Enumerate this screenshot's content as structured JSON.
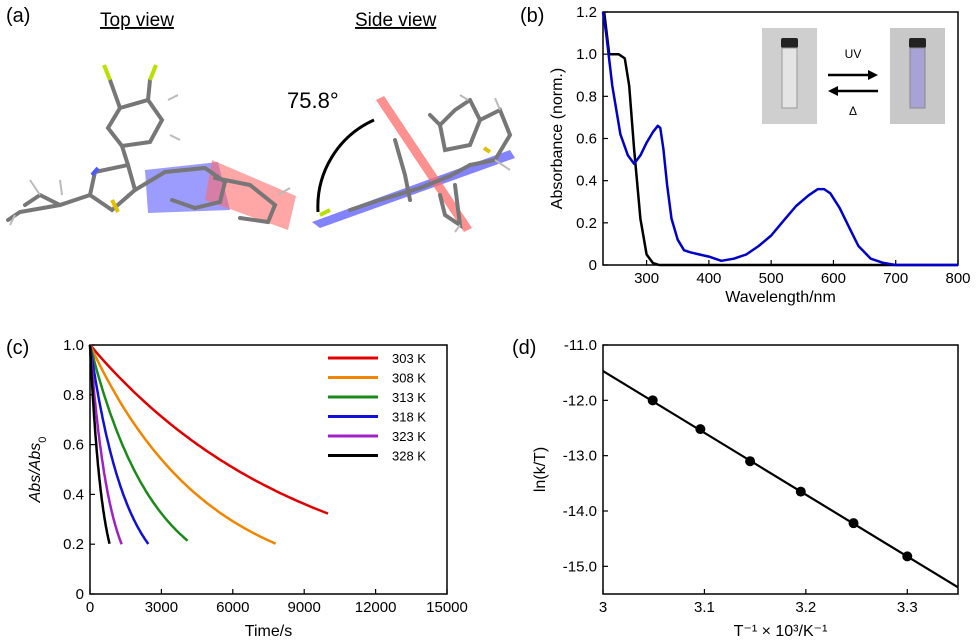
{
  "panel_a": {
    "label": "(a)",
    "top_view": "Top view",
    "side_view": "Side view",
    "angle": "75.8°"
  },
  "panel_b": {
    "label": "(b)",
    "uv_label": "UV",
    "heat_label": "Δ"
  },
  "panel_c": {
    "label": "(c)"
  },
  "panel_d": {
    "label": "(d)"
  },
  "colors": {
    "blue_plane": "#5a5aff",
    "red_plane": "#ff6b6b",
    "spectrum_blue": "#0000c8"
  },
  "chart_data": [
    {
      "id": "b",
      "type": "line",
      "xlabel": "Wavelength/nm",
      "ylabel": "Absorbance (norm.)",
      "xlim": [
        230,
        800
      ],
      "ylim": [
        0,
        1.2
      ],
      "xticks": [
        300,
        400,
        500,
        600,
        700,
        800
      ],
      "yticks": [
        0,
        0.2,
        0.4,
        0.6,
        0.8,
        1.0,
        1.2
      ],
      "series": [
        {
          "color": "#000000",
          "x": [
            232,
            240,
            255,
            265,
            272,
            280,
            290,
            300,
            310,
            320,
            800
          ],
          "y": [
            1.2,
            1.0,
            1.0,
            0.98,
            0.85,
            0.55,
            0.22,
            0.05,
            0.01,
            0,
            0
          ]
        },
        {
          "color": "#0000c8",
          "x": [
            230,
            235,
            245,
            258,
            270,
            280,
            290,
            300,
            310,
            318,
            322,
            327,
            333,
            340,
            350,
            360,
            370,
            385,
            400,
            420,
            440,
            460,
            480,
            500,
            520,
            540,
            560,
            575,
            585,
            595,
            610,
            625,
            640,
            660,
            680,
            700,
            720,
            750,
            800
          ],
          "y": [
            1.2,
            1.1,
            0.85,
            0.62,
            0.52,
            0.48,
            0.52,
            0.58,
            0.63,
            0.66,
            0.65,
            0.55,
            0.38,
            0.22,
            0.12,
            0.07,
            0.06,
            0.05,
            0.04,
            0.02,
            0.03,
            0.05,
            0.09,
            0.14,
            0.21,
            0.28,
            0.33,
            0.36,
            0.36,
            0.34,
            0.27,
            0.18,
            0.09,
            0.03,
            0.01,
            0,
            0,
            0,
            0
          ]
        }
      ]
    },
    {
      "id": "c",
      "type": "line",
      "xlabel": "Time/s",
      "ylabel": "Abs/Abs0",
      "xlim": [
        0,
        15000
      ],
      "ylim": [
        0,
        1.0
      ],
      "xticks": [
        0,
        3000,
        6000,
        9000,
        12000,
        15000
      ],
      "yticks": [
        0,
        0.2,
        0.4,
        0.6,
        0.8,
        1.0
      ],
      "series": [
        {
          "name": "303 K",
          "color": "#e00000",
          "k": 0.000113,
          "tmax": 10000
        },
        {
          "name": "308 K",
          "color": "#f28500",
          "k": 0.000205,
          "tmax": 7800
        },
        {
          "name": "313 K",
          "color": "#1a8a1a",
          "k": 0.000376,
          "tmax": 4100
        },
        {
          "name": "318 K",
          "color": "#1010d8",
          "k": 0.000655,
          "tmax": 2450
        },
        {
          "name": "323 K",
          "color": "#a020c8",
          "k": 0.00121,
          "tmax": 1330
        },
        {
          "name": "328 K",
          "color": "#000000",
          "k": 0.00195,
          "tmax": 820
        }
      ]
    },
    {
      "id": "d",
      "type": "scatter",
      "xlabel": "T⁻¹ × 10³/K⁻¹",
      "ylabel": "ln(k/T)",
      "xlim": [
        3.0,
        3.35
      ],
      "ylim": [
        -15.5,
        -11.0
      ],
      "xticks": [
        3,
        3.1,
        3.2,
        3.3
      ],
      "xtick_labels": [
        "3",
        "3.1",
        "3.2",
        "3.3"
      ],
      "yticks": [
        -15,
        -14,
        -13,
        -12,
        -11
      ],
      "ytick_labels": [
        "-15.0",
        "-14.0",
        "-13.0",
        "-12.0",
        "-11.0"
      ],
      "x": [
        3.049,
        3.096,
        3.145,
        3.195,
        3.247,
        3.3
      ],
      "y": [
        -12.0,
        -12.52,
        -13.1,
        -13.65,
        -14.22,
        -14.82
      ],
      "fit": {
        "x": [
          3.0,
          3.35
        ],
        "y": [
          -11.47,
          -15.38
        ]
      }
    }
  ]
}
